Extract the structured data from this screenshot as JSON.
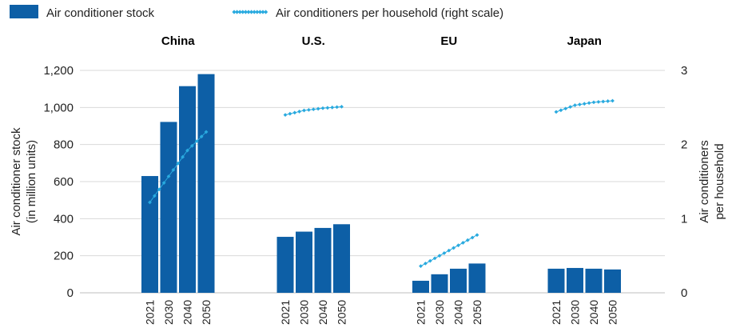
{
  "chart_data": {
    "type": "bar",
    "legend": {
      "placement": "top-left",
      "bar_label": "Air conditioner stock",
      "line_label": "Air conditioners per household (right scale)"
    },
    "ylabel_left": [
      "Air conditioner stock",
      "(in million units)"
    ],
    "ylabel_right": [
      "Air conditioners",
      "per household"
    ],
    "ylim_left": [
      0,
      1200
    ],
    "yticks_left": [
      "0",
      "200",
      "400",
      "600",
      "800",
      "1,000",
      "1,200"
    ],
    "ylim_right": [
      0,
      3
    ],
    "yticks_right": [
      "0",
      "1",
      "2",
      "3"
    ],
    "grid": true,
    "years": [
      "2021",
      "2030",
      "2040",
      "2050"
    ],
    "regions": [
      {
        "name": "China",
        "stock": [
          630,
          922,
          1115,
          1180
        ],
        "per_household": [
          1.22,
          1.57,
          1.92,
          2.17
        ]
      },
      {
        "name": "U.S.",
        "stock": [
          302,
          330,
          350,
          370
        ],
        "per_household": [
          2.4,
          2.46,
          2.49,
          2.51
        ]
      },
      {
        "name": "EU",
        "stock": [
          65,
          100,
          130,
          158
        ],
        "per_household": [
          0.36,
          0.5,
          0.64,
          0.78
        ]
      },
      {
        "name": "Japan",
        "stock": [
          130,
          134,
          130,
          126
        ],
        "per_household": [
          2.44,
          2.53,
          2.57,
          2.59
        ]
      }
    ],
    "colors": {
      "bar": "#0d5fa6",
      "line": "#29aadf",
      "grid": "#d9d9d9"
    }
  }
}
